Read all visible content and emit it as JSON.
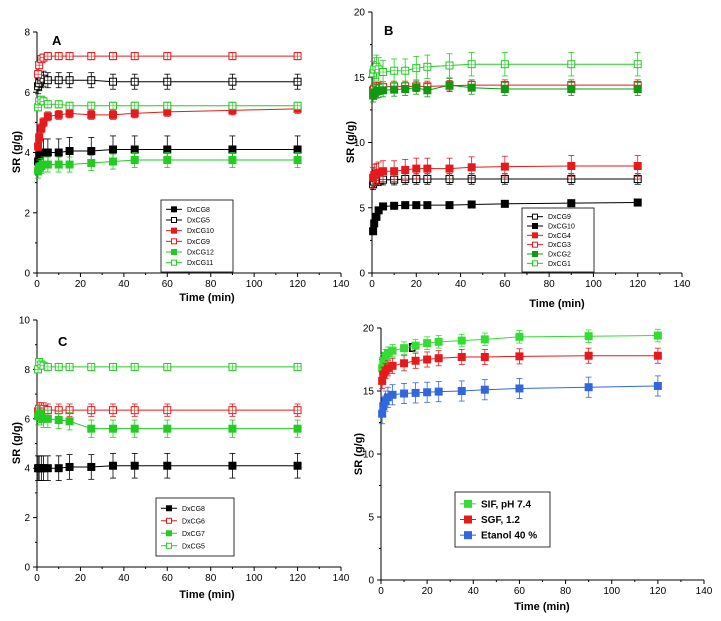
{
  "chart_data": [
    {
      "type": "scatter",
      "panel": "A",
      "title": "",
      "xlabel": "Time (min)",
      "ylabel": "SR (g/g)",
      "xlim": [
        0,
        140
      ],
      "ylim": [
        0,
        8
      ],
      "xticks": [
        "0",
        "20",
        "40",
        "60",
        "80",
        "100",
        "120",
        "140"
      ],
      "yticks": [
        "0",
        "2",
        "4",
        "6",
        "8"
      ],
      "legend_position": "bottom-left",
      "x": [
        0.5,
        1,
        2,
        3,
        5,
        10,
        15,
        25,
        35,
        45,
        60,
        90,
        120
      ],
      "series": [
        {
          "name": "DxCG8",
          "color": "#000000",
          "filled": true,
          "values": [
            3.7,
            3.9,
            4.0,
            4.0,
            4.0,
            4.0,
            4.05,
            4.05,
            4.1,
            4.1,
            4.1,
            4.1,
            4.1
          ],
          "err": 0.45
        },
        {
          "name": "DxCG5",
          "color": "#000000",
          "filled": false,
          "values": [
            6.2,
            6.3,
            6.4,
            6.45,
            6.4,
            6.4,
            6.4,
            6.4,
            6.35,
            6.35,
            6.35,
            6.35,
            6.35
          ],
          "err": 0.25
        },
        {
          "name": "DxCG10",
          "color": "#e41a1c",
          "filled": true,
          "values": [
            4.2,
            4.5,
            4.8,
            5.0,
            5.2,
            5.25,
            5.3,
            5.25,
            5.25,
            5.3,
            5.35,
            5.4,
            5.45
          ],
          "err": 0.15
        },
        {
          "name": "DxCG9",
          "color": "#e41a1c",
          "filled": false,
          "values": [
            6.6,
            6.9,
            7.1,
            7.15,
            7.2,
            7.2,
            7.2,
            7.2,
            7.2,
            7.2,
            7.2,
            7.2,
            7.2
          ],
          "err": 0.12
        },
        {
          "name": "DxCG12",
          "color": "#22cc22",
          "filled": true,
          "values": [
            3.4,
            3.5,
            3.55,
            3.6,
            3.6,
            3.6,
            3.6,
            3.65,
            3.7,
            3.75,
            3.75,
            3.75,
            3.75
          ],
          "err": 0.25
        },
        {
          "name": "DxCG11",
          "color": "#22cc22",
          "filled": false,
          "values": [
            5.5,
            5.7,
            5.75,
            5.7,
            5.6,
            5.6,
            5.55,
            5.55,
            5.55,
            5.55,
            5.55,
            5.55,
            5.55
          ],
          "err": 0.12
        }
      ]
    },
    {
      "type": "scatter",
      "panel": "B",
      "title": "",
      "xlabel": "Time (min)",
      "ylabel": "SR (g/g)",
      "xlim": [
        0,
        140
      ],
      "ylim": [
        0,
        20
      ],
      "xticks": [
        "0",
        "20",
        "40",
        "60",
        "80",
        "100",
        "120",
        "140"
      ],
      "yticks": [
        "0",
        "5",
        "10",
        "15",
        "20"
      ],
      "legend_position": "bottom-right",
      "x": [
        0.5,
        1,
        2,
        3,
        5,
        10,
        15,
        20,
        25,
        35,
        45,
        60,
        90,
        120
      ],
      "series": [
        {
          "name": "DxCG9",
          "color": "#000000",
          "filled": false,
          "values": [
            6.8,
            7.0,
            7.1,
            7.1,
            7.15,
            7.15,
            7.2,
            7.2,
            7.2,
            7.2,
            7.2,
            7.2,
            7.2,
            7.2
          ],
          "err": 0.4
        },
        {
          "name": "DxCG10",
          "color": "#000000",
          "filled": true,
          "values": [
            3.2,
            3.8,
            4.3,
            4.8,
            5.1,
            5.15,
            5.2,
            5.2,
            5.2,
            5.2,
            5.25,
            5.3,
            5.35,
            5.4
          ],
          "err": 0.2
        },
        {
          "name": "DxCG4",
          "color": "#e41a1c",
          "filled": true,
          "values": [
            7.3,
            7.5,
            7.6,
            7.7,
            7.8,
            7.8,
            7.9,
            8.0,
            8.0,
            8.0,
            8.1,
            8.15,
            8.2,
            8.2
          ],
          "err": 0.8
        },
        {
          "name": "DxCG3",
          "color": "#e41a1c",
          "filled": false,
          "values": [
            14.0,
            14.1,
            14.2,
            14.2,
            14.25,
            14.3,
            14.3,
            14.3,
            14.3,
            14.35,
            14.4,
            14.4,
            14.4,
            14.4
          ],
          "err": 0.4
        },
        {
          "name": "DxCG2",
          "color": "#119911",
          "filled": true,
          "values": [
            13.6,
            13.8,
            13.9,
            13.95,
            14.0,
            14.05,
            14.1,
            14.2,
            14.0,
            14.4,
            14.2,
            14.1,
            14.1,
            14.1
          ],
          "err": 0.5
        },
        {
          "name": "DxCG1",
          "color": "#22cc22",
          "filled": false,
          "values": [
            15.3,
            15.6,
            15.8,
            15.6,
            15.4,
            15.5,
            15.5,
            15.7,
            15.8,
            15.9,
            16.0,
            16.0,
            16.0,
            16.0
          ],
          "err": 0.9
        }
      ]
    },
    {
      "type": "scatter",
      "panel": "C",
      "title": "",
      "xlabel": "Time (min)",
      "ylabel": "SR (g/g)",
      "xlim": [
        0,
        140
      ],
      "ylim": [
        0,
        10
      ],
      "xticks": [
        "0",
        "20",
        "40",
        "60",
        "80",
        "100",
        "120",
        "140"
      ],
      "yticks": [
        "0",
        "2",
        "4",
        "6",
        "8",
        "10"
      ],
      "legend_position": "bottom-right",
      "x": [
        0.5,
        1,
        2,
        3,
        5,
        10,
        15,
        25,
        35,
        45,
        60,
        90,
        120
      ],
      "series": [
        {
          "name": "DxCG8",
          "color": "#000000",
          "filled": true,
          "values": [
            4.0,
            4.0,
            4.0,
            4.0,
            4.0,
            4.0,
            4.05,
            4.05,
            4.1,
            4.1,
            4.1,
            4.1,
            4.1
          ],
          "err": 0.5
        },
        {
          "name": "DxCG6",
          "color": "#e41a1c",
          "filled": false,
          "values": [
            6.3,
            6.4,
            6.4,
            6.4,
            6.35,
            6.35,
            6.35,
            6.35,
            6.35,
            6.35,
            6.35,
            6.35,
            6.35
          ],
          "err": 0.25
        },
        {
          "name": "DxCG7",
          "color": "#22cc22",
          "filled": true,
          "values": [
            6.1,
            6.2,
            6.1,
            6.0,
            6.0,
            5.95,
            5.9,
            5.6,
            5.6,
            5.6,
            5.6,
            5.6,
            5.6
          ],
          "err": 0.35
        },
        {
          "name": "DxCG5",
          "color": "#22cc22",
          "filled": false,
          "values": [
            8.0,
            8.3,
            8.2,
            8.15,
            8.1,
            8.1,
            8.1,
            8.1,
            8.1,
            8.1,
            8.1,
            8.1,
            8.1
          ],
          "err": 0.12
        }
      ]
    },
    {
      "type": "scatter",
      "panel": "D",
      "title": "",
      "xlabel": "Time (min)",
      "ylabel": "SR (g/g)",
      "xlim": [
        0,
        140
      ],
      "ylim": [
        0,
        20
      ],
      "xticks": [
        "0",
        "20",
        "40",
        "60",
        "80",
        "100",
        "120",
        "140"
      ],
      "yticks": [
        "0",
        "5",
        "10",
        "15",
        "20"
      ],
      "legend_position": "bottom-right",
      "x": [
        0.5,
        1,
        2,
        3,
        5,
        10,
        15,
        20,
        25,
        35,
        45,
        60,
        90,
        120
      ],
      "series": [
        {
          "name": "SIF, pH 7.4",
          "color": "#33dd33",
          "filled": true,
          "values": [
            16.8,
            17.4,
            17.8,
            18.0,
            18.2,
            18.4,
            18.6,
            18.8,
            18.9,
            19.0,
            19.1,
            19.3,
            19.35,
            19.4
          ],
          "err": 0.5
        },
        {
          "name": "SGF, 1.2",
          "color": "#e41a1c",
          "filled": true,
          "values": [
            15.8,
            16.3,
            16.6,
            16.8,
            17.0,
            17.2,
            17.4,
            17.5,
            17.6,
            17.7,
            17.7,
            17.75,
            17.8,
            17.8
          ],
          "err": 0.6
        },
        {
          "name": "Etanol 40 %",
          "color": "#3366dd",
          "filled": true,
          "values": [
            13.2,
            13.8,
            14.2,
            14.5,
            14.7,
            14.8,
            14.85,
            14.9,
            14.95,
            15.0,
            15.1,
            15.2,
            15.3,
            15.4
          ],
          "err": 0.8
        }
      ]
    }
  ]
}
